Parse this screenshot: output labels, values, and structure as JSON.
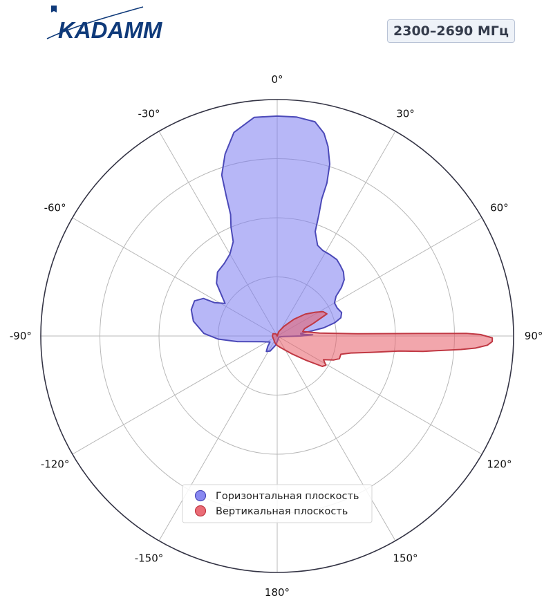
{
  "brand": {
    "logo_text": "KADAMM",
    "logo_color": "#0f3a7a"
  },
  "header": {
    "frequency_badge": "2300–2690 МГц"
  },
  "chart_data": {
    "type": "polar-area",
    "theta_zero": "top",
    "theta_direction": "clockwise",
    "theta_ticks": [
      0,
      30,
      60,
      90,
      120,
      150,
      180,
      -150,
      -120,
      -90,
      -60,
      -30
    ],
    "theta_tick_labels": [
      "0°",
      "30°",
      "60°",
      "90°",
      "120°",
      "150°",
      "180°",
      "-150°",
      "-120°",
      "-90°",
      "-60°",
      "-30°"
    ],
    "radial_gridlines": [
      0.25,
      0.5,
      0.75,
      1.0
    ],
    "radial_tick_labels_shown": false,
    "rlim": [
      0,
      1
    ],
    "grid": true,
    "legend_position": "bottom-center",
    "series": [
      {
        "name": "Горизонтальная плоскость",
        "fill_color": "#7b7bf0",
        "line_color": "#4b49b8",
        "points": [
          [
            0,
            0.93
          ],
          [
            5,
            0.93
          ],
          [
            10,
            0.92
          ],
          [
            13,
            0.88
          ],
          [
            15,
            0.83
          ],
          [
            17,
            0.76
          ],
          [
            18,
            0.68
          ],
          [
            18,
            0.61
          ],
          [
            19,
            0.54
          ],
          [
            20,
            0.47
          ],
          [
            24,
            0.42
          ],
          [
            28,
            0.41
          ],
          [
            33,
            0.41
          ],
          [
            38,
            0.41
          ],
          [
            42,
            0.4
          ],
          [
            46,
            0.39
          ],
          [
            50,
            0.37
          ],
          [
            53,
            0.34
          ],
          [
            56,
            0.3
          ],
          [
            60,
            0.28
          ],
          [
            65,
            0.28
          ],
          [
            70,
            0.29
          ],
          [
            74,
            0.28
          ],
          [
            77,
            0.25
          ],
          [
            80,
            0.2
          ],
          [
            82,
            0.14
          ],
          [
            84,
            0.1
          ],
          [
            86,
            0.1
          ],
          [
            88,
            0.15
          ],
          [
            90,
            0.1
          ],
          [
            94,
            0.03
          ],
          [
            110,
            0.01
          ],
          [
            145,
            0.01
          ],
          [
            175,
            0.02
          ],
          [
            190,
            0.04
          ],
          [
            205,
            0.07
          ],
          [
            215,
            0.08
          ],
          [
            222,
            0.06
          ],
          [
            230,
            0.04
          ],
          [
            250,
            0.07
          ],
          [
            262,
            0.17
          ],
          [
            267,
            0.25
          ],
          [
            272,
            0.31
          ],
          [
            280,
            0.36
          ],
          [
            287,
            0.38
          ],
          [
            293,
            0.38
          ],
          [
            297,
            0.35
          ],
          [
            298,
            0.3
          ],
          [
            302,
            0.26
          ],
          [
            306,
            0.29
          ],
          [
            311,
            0.34
          ],
          [
            317,
            0.37
          ],
          [
            324,
            0.38
          ],
          [
            330,
            0.4
          ],
          [
            335,
            0.44
          ],
          [
            337,
            0.5
          ],
          [
            339,
            0.55
          ],
          [
            340,
            0.63
          ],
          [
            341,
            0.72
          ],
          [
            344,
            0.8
          ],
          [
            348,
            0.88
          ],
          [
            354,
            0.93
          ],
          [
            360,
            0.93
          ]
        ]
      },
      {
        "name": "Вертикальная плоскость",
        "fill_color": "#e85c67",
        "line_color": "#c03843",
        "points": [
          [
            0,
            0.0
          ],
          [
            20,
            0.02
          ],
          [
            35,
            0.05
          ],
          [
            45,
            0.1
          ],
          [
            52,
            0.15
          ],
          [
            58,
            0.19
          ],
          [
            62,
            0.22
          ],
          [
            66,
            0.23
          ],
          [
            71,
            0.16
          ],
          [
            75,
            0.12
          ],
          [
            80,
            0.11
          ],
          [
            86,
            0.18
          ],
          [
            88.4,
            0.34
          ],
          [
            89.0,
            0.6
          ],
          [
            89.2,
            0.8
          ],
          [
            89.6,
            0.86
          ],
          [
            90.5,
            0.91
          ],
          [
            91.5,
            0.91
          ],
          [
            92.5,
            0.89
          ],
          [
            93.5,
            0.84
          ],
          [
            94.2,
            0.78
          ],
          [
            96,
            0.62
          ],
          [
            97,
            0.52
          ],
          [
            100,
            0.4
          ],
          [
            103,
            0.32
          ],
          [
            106,
            0.28
          ],
          [
            110,
            0.28
          ],
          [
            113,
            0.26
          ],
          [
            117,
            0.22
          ],
          [
            121,
            0.24
          ],
          [
            124,
            0.23
          ],
          [
            130,
            0.16
          ],
          [
            140,
            0.1
          ],
          [
            150,
            0.07
          ],
          [
            165,
            0.05
          ],
          [
            180,
            0.04
          ],
          [
            200,
            0.03
          ],
          [
            230,
            0.02
          ],
          [
            260,
            0.02
          ],
          [
            280,
            0.02
          ],
          [
            300,
            0.02
          ],
          [
            330,
            0.01
          ],
          [
            360,
            0.0
          ]
        ]
      }
    ]
  }
}
